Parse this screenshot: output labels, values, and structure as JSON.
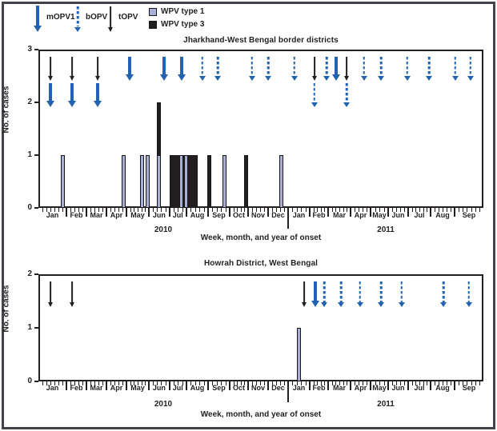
{
  "legend": {
    "vaccines": [
      {
        "id": "mOPV1",
        "label": "mOPV1"
      },
      {
        "id": "bOPV",
        "label": "bOPV"
      },
      {
        "id": "tOPV",
        "label": "tOPV"
      }
    ],
    "wpv_types": [
      {
        "id": "wpv1",
        "label": "WPV type 1"
      },
      {
        "id": "wpv3",
        "label": "WPV type 3"
      }
    ]
  },
  "colors": {
    "campaign_blue": "#2163ae",
    "campaign_black": "#231f20",
    "wpv1_fill": "#a9afd4",
    "wpv3_fill": "#231f20"
  },
  "chart_data": [
    {
      "type": "bar",
      "title": "Jharkhand-West Bengal border districts",
      "ylabel": "No. of cases",
      "xlabel": "Week, month, and year of onset",
      "ylim": [
        0,
        3
      ],
      "yticks": [
        0,
        1,
        2,
        3
      ],
      "x_months": [
        "Jan",
        "Feb",
        "Mar",
        "Apr",
        "May",
        "Jun",
        "Jul",
        "Aug",
        "Sep",
        "Oct",
        "Nov",
        "Dec",
        "Jan",
        "Feb",
        "Mar",
        "Apr",
        "May",
        "Jun",
        "Jul",
        "Aug",
        "Sep"
      ],
      "x_years": [
        {
          "label": "2010"
        },
        {
          "label": "2011"
        }
      ],
      "bars": [
        {
          "wpv": 3,
          "x": 0.2698,
          "cases": 2
        },
        {
          "wpv": 3,
          "x": 0.3264,
          "cases": 1,
          "weeks": 7
        },
        {
          "wpv": 3,
          "x": 0.384,
          "cases": 1
        },
        {
          "wpv": 3,
          "x": 0.4676,
          "cases": 1
        },
        {
          "wpv": 1,
          "x": 0.054,
          "cases": 1
        },
        {
          "wpv": 1,
          "x": 0.1924,
          "cases": 1
        },
        {
          "wpv": 1,
          "x": 0.2338,
          "cases": 1
        },
        {
          "wpv": 1,
          "x": 0.2455,
          "cases": 1
        },
        {
          "wpv": 1,
          "x": 0.2698,
          "cases": 1
        },
        {
          "wpv": 1,
          "x": 0.3219,
          "cases": 1
        },
        {
          "wpv": 1,
          "x": 0.3327,
          "cases": 1
        },
        {
          "wpv": 1,
          "x": 0.4173,
          "cases": 1
        },
        {
          "wpv": 1,
          "x": 0.545,
          "cases": 1
        }
      ],
      "campaigns": [
        {
          "x": 0.027,
          "vaccine": "tOPV",
          "row": 1
        },
        {
          "x": 0.0755,
          "vaccine": "tOPV",
          "row": 1
        },
        {
          "x": 0.1331,
          "vaccine": "tOPV",
          "row": 1
        },
        {
          "x": 0.027,
          "vaccine": "mOPV1",
          "row": 2
        },
        {
          "x": 0.0755,
          "vaccine": "mOPV1",
          "row": 2
        },
        {
          "x": 0.1331,
          "vaccine": "mOPV1",
          "row": 2
        },
        {
          "x": 0.205,
          "vaccine": "mOPV1",
          "row": 1
        },
        {
          "x": 0.2824,
          "vaccine": "mOPV1",
          "row": 1
        },
        {
          "x": 0.3228,
          "vaccine": "mOPV1",
          "row": 1
        },
        {
          "x": 0.3687,
          "vaccine": "bOPV",
          "row": 1
        },
        {
          "x": 0.4029,
          "vaccine": "bOPV",
          "row": 1
        },
        {
          "x": 0.4802,
          "vaccine": "bOPV",
          "row": 1
        },
        {
          "x": 0.5162,
          "vaccine": "bOPV",
          "row": 1
        },
        {
          "x": 0.5755,
          "vaccine": "bOPV",
          "row": 1
        },
        {
          "x": 0.6205,
          "vaccine": "tOPV",
          "row": 1
        },
        {
          "x": 0.6205,
          "vaccine": "bOPV",
          "row": 2
        },
        {
          "x": 0.6475,
          "vaccine": "bOPV",
          "row": 1
        },
        {
          "x": 0.6691,
          "vaccine": "mOPV1",
          "row": 1
        },
        {
          "x": 0.6933,
          "vaccine": "tOPV",
          "row": 1
        },
        {
          "x": 0.6933,
          "vaccine": "bOPV",
          "row": 2
        },
        {
          "x": 0.732,
          "vaccine": "bOPV",
          "row": 1
        },
        {
          "x": 0.7698,
          "vaccine": "bOPV",
          "row": 1
        },
        {
          "x": 0.8291,
          "vaccine": "bOPV",
          "row": 1
        },
        {
          "x": 0.8777,
          "vaccine": "bOPV",
          "row": 1
        },
        {
          "x": 0.9362,
          "vaccine": "bOPV",
          "row": 1
        },
        {
          "x": 0.9712,
          "vaccine": "bOPV",
          "row": 1
        }
      ]
    },
    {
      "type": "bar",
      "title": "Howrah District, West Bengal",
      "ylabel": "No. of cases",
      "xlabel": "Week, month, and year of onset",
      "ylim": [
        0,
        2
      ],
      "yticks": [
        0,
        1,
        2
      ],
      "x_months": [
        "Jan",
        "Feb",
        "Mar",
        "Apr",
        "May",
        "Jun",
        "Jul",
        "Aug",
        "Sep",
        "Oct",
        "Nov",
        "Dec",
        "Jan",
        "Feb",
        "Mar",
        "Apr",
        "May",
        "Jun",
        "Jul",
        "Aug",
        "Sep"
      ],
      "x_years": [
        {
          "label": "2010"
        },
        {
          "label": "2011"
        }
      ],
      "bars": [
        {
          "wpv": 1,
          "x": 0.5863,
          "cases": 1
        }
      ],
      "campaigns": [
        {
          "x": 0.027,
          "vaccine": "tOPV",
          "row": 1
        },
        {
          "x": 0.0755,
          "vaccine": "tOPV",
          "row": 1
        },
        {
          "x": 0.5971,
          "vaccine": "tOPV",
          "row": 1
        },
        {
          "x": 0.6223,
          "vaccine": "mOPV1",
          "row": 1
        },
        {
          "x": 0.6421,
          "vaccine": "bOPV",
          "row": 1
        },
        {
          "x": 0.6799,
          "vaccine": "bOPV",
          "row": 1
        },
        {
          "x": 0.723,
          "vaccine": "bOPV",
          "row": 1
        },
        {
          "x": 0.7698,
          "vaccine": "bOPV",
          "row": 1
        },
        {
          "x": 0.8165,
          "vaccine": "bOPV",
          "row": 1
        },
        {
          "x": 0.9101,
          "vaccine": "bOPV",
          "row": 1
        },
        {
          "x": 0.9676,
          "vaccine": "bOPV",
          "row": 1
        }
      ]
    }
  ]
}
